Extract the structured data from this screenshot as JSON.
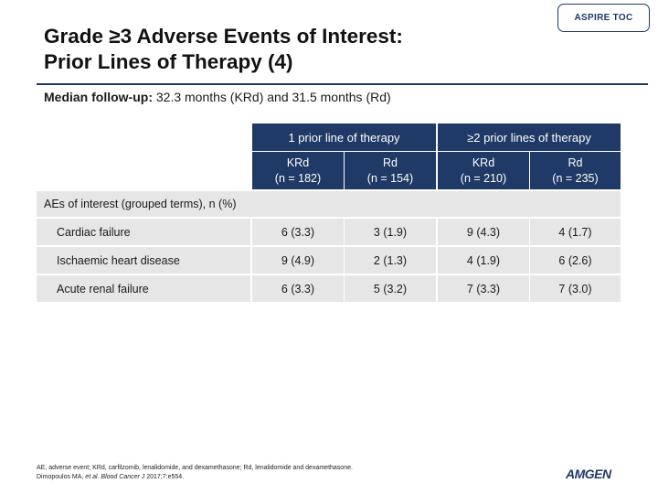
{
  "slide": {
    "title_line1": "Grade ≥3 Adverse Events of Interest:",
    "title_line2": "Prior Lines of Therapy (4)",
    "toc_label": "ASPIRE TOC",
    "followup_label": "Median follow-up:",
    "followup_text": " 32.3 months (KRd) and 31.5 months (Rd)"
  },
  "table": {
    "group_headers": [
      "1 prior line of therapy",
      "≥2 prior lines of therapy"
    ],
    "arm_headers": [
      {
        "line1": "KRd",
        "line2": "(n = 182)"
      },
      {
        "line1": "Rd",
        "line2": "(n = 154)"
      },
      {
        "line1": "KRd",
        "line2": "(n = 210)"
      },
      {
        "line1": "Rd",
        "line2": "(n = 235)"
      }
    ],
    "section_label": "AEs of interest (grouped terms),  n (%)",
    "rows": [
      {
        "label": "Cardiac failure",
        "values": [
          "6 (3.3)",
          "3 (1.9)",
          "9 (4.3)",
          "4 (1.7)"
        ]
      },
      {
        "label": "Ischaemic heart disease",
        "values": [
          "9 (4.9)",
          "2 (1.3)",
          "4 (1.9)",
          "6 (2.6)"
        ]
      },
      {
        "label": "Acute renal failure",
        "values": [
          "6 (3.3)",
          "5 (3.2)",
          "7 (3.3)",
          "7 (3.0)"
        ]
      }
    ]
  },
  "footnote": {
    "line1": "AE, adverse event; KRd, carfilzomib, lenalidomide, and dexamethasone; Rd, lenalidomide and dexamethasone.",
    "line2_prefix": "Dimopoulos MA, ",
    "line2_italic": "et al. Blood Cancer J",
    "line2_suffix": " 2017;7:e554."
  },
  "logo": {
    "text": "AMGEN"
  },
  "colors": {
    "accent": "#1f3a66",
    "row_shade": "#e6e6e6"
  }
}
